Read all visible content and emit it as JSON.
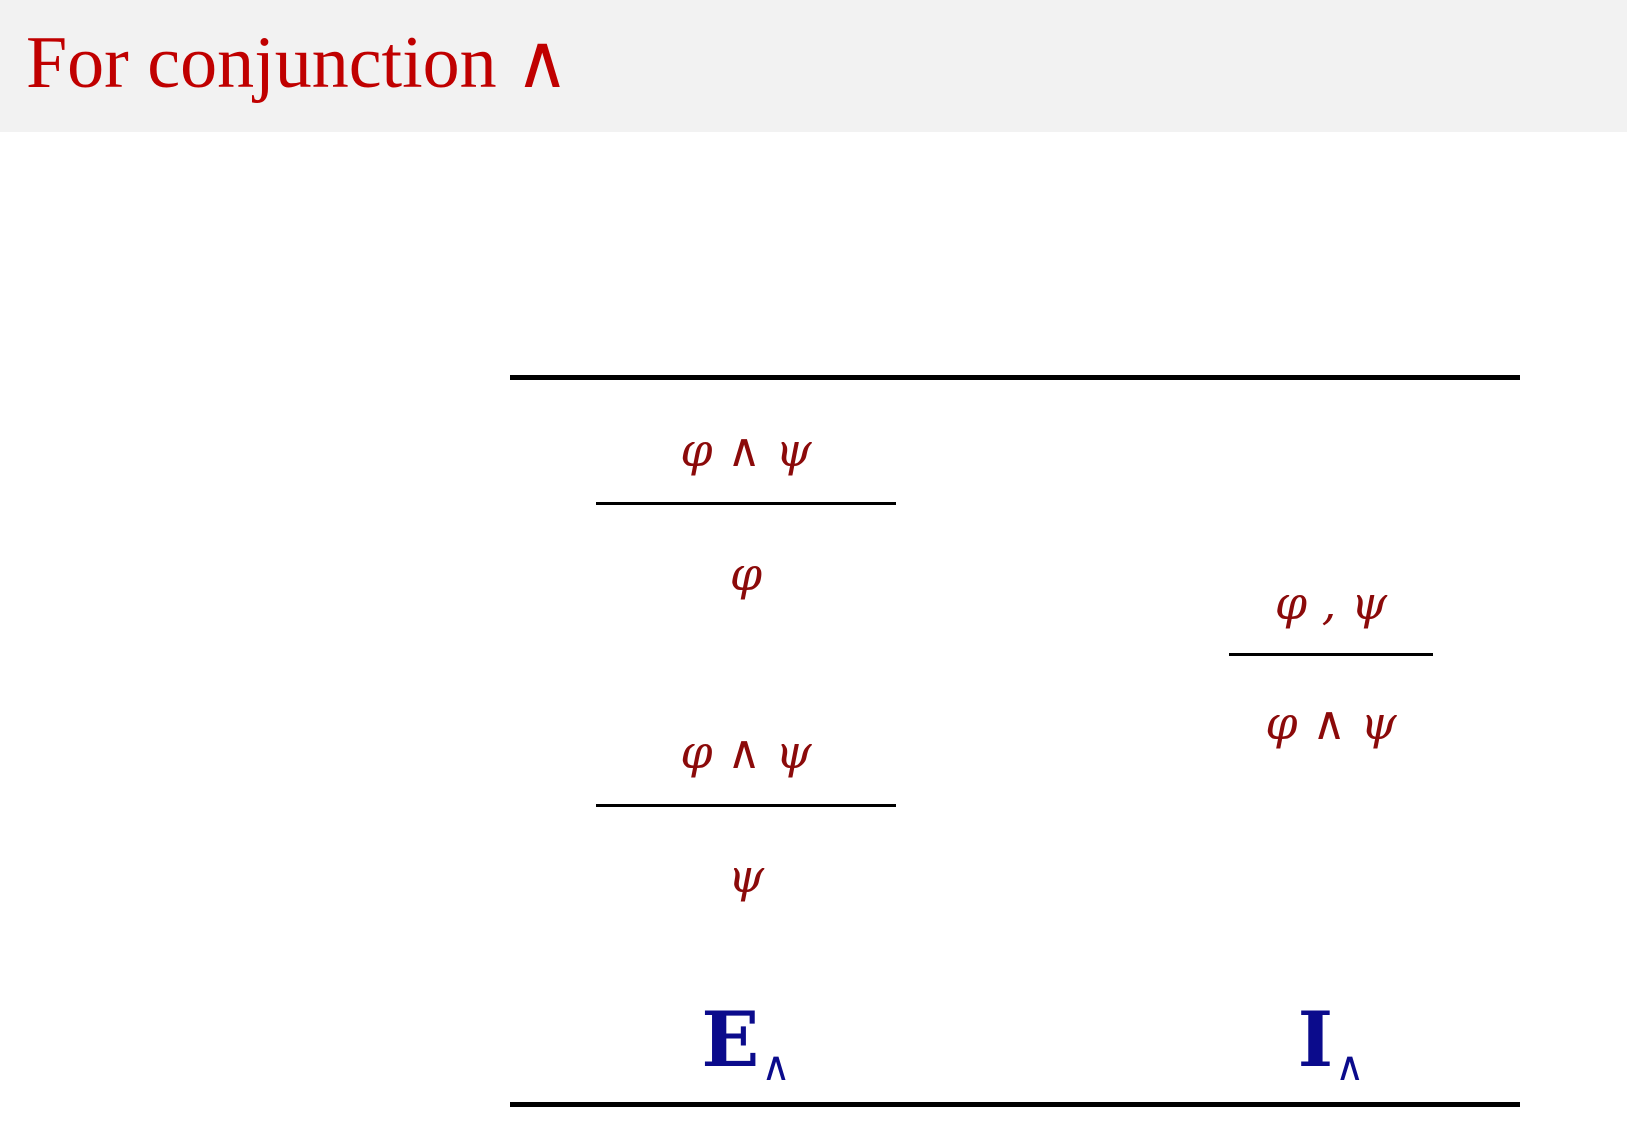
{
  "slide": {
    "title": "For conjunction ∧"
  },
  "elimination": {
    "rule1": {
      "premise": "φ ∧ ψ",
      "conclusion": "φ"
    },
    "rule2": {
      "premise": "φ ∧ ψ",
      "conclusion": "ψ"
    },
    "name": {
      "letter": "E",
      "subscript": "∧"
    }
  },
  "introduction": {
    "rule": {
      "premise": "φ , ψ",
      "conclusion": "φ ∧ ψ"
    },
    "name": {
      "letter": "I",
      "subscript": "∧"
    }
  },
  "colors": {
    "title": "#c00000",
    "formula": "#8b0a0a",
    "rule_name": "#0b0b8c",
    "header_bg": "#f2f2f2"
  }
}
